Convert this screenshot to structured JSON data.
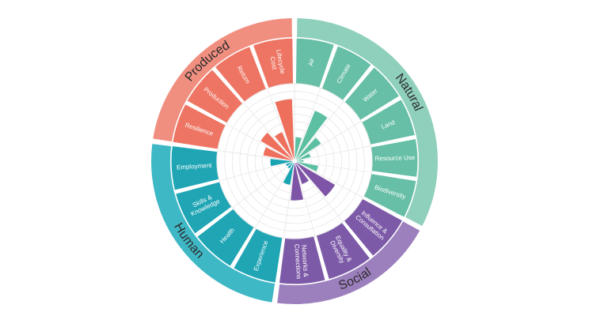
{
  "chart_data": {
    "type": "radial-bar",
    "title": "",
    "capitals": [
      {
        "name": "Natural",
        "icon": "tree-icon",
        "outer_color": "#8fd0bc",
        "mid_color": "#66bfa6",
        "bar_color": "#5dbfa2",
        "segments": [
          {
            "label": "Air",
            "value": 3
          },
          {
            "label": "Climate",
            "value": 7
          },
          {
            "label": "Water",
            "value": 4
          },
          {
            "label": "Land",
            "value": 2
          },
          {
            "label": "Resource Use",
            "value": 1
          },
          {
            "label": "Biodiversity",
            "value": 3
          }
        ]
      },
      {
        "name": "Social",
        "icon": "heart-hands-icon",
        "outer_color": "#9c7fbd",
        "mid_color": "#7d5aa8",
        "bar_color": "#7e55a6",
        "segments": [
          {
            "label": "Influence & Consultation",
            "value": 6
          },
          {
            "label": "Equality & Diversity",
            "value": 3
          },
          {
            "label": "Networks & Connections",
            "value": 5
          }
        ]
      },
      {
        "name": "Human",
        "icon": "person-icon",
        "outer_color": "#3fb8c6",
        "mid_color": "#1fa5b4",
        "bar_color": "#19a3b3",
        "segments": [
          {
            "label": "Experience",
            "value": 3
          },
          {
            "label": "Health",
            "value": 1
          },
          {
            "label": "Skills & Knowledge",
            "value": 1
          },
          {
            "label": "Employment",
            "value": 3
          }
        ]
      },
      {
        "name": "Produced",
        "icon": "gear-icon",
        "outer_color": "#f08f80",
        "mid_color": "#ee7563",
        "bar_color": "#ee6f5c",
        "segments": [
          {
            "label": "Resilience",
            "value": 4
          },
          {
            "label": "Production",
            "value": 5
          },
          {
            "label": "Return",
            "value": 4
          },
          {
            "label": "Lifecycle Cost",
            "value": 8
          }
        ]
      }
    ],
    "max_value": 10,
    "grid": true
  }
}
